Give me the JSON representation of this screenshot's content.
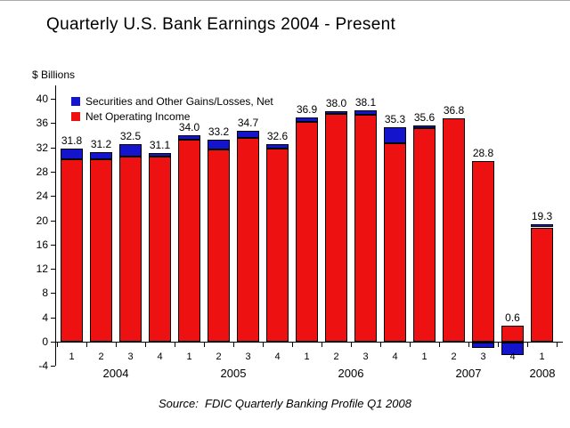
{
  "page": {
    "title": "Quarterly U.S. Bank Earnings 2004 - Present",
    "source_note": "Source:  FDIC Quarterly Banking Profile Q1 2008"
  },
  "chart_data": {
    "type": "bar",
    "stacked": true,
    "title": "Quarterly U.S. Bank Earnings 2004 - Present",
    "ylabel": "$ Billions",
    "ylim": [
      -4,
      40
    ],
    "ytick_step": 4,
    "grid": false,
    "legend_position": "top-left-inside",
    "colors": {
      "securities": "#1414cc",
      "operating": "#ee1111",
      "bar_border": "#000000",
      "axis": "#000000"
    },
    "categories": [
      {
        "q": "1",
        "year": "2004"
      },
      {
        "q": "2",
        "year": "2004"
      },
      {
        "q": "3",
        "year": "2004"
      },
      {
        "q": "4",
        "year": "2004"
      },
      {
        "q": "1",
        "year": "2005"
      },
      {
        "q": "2",
        "year": "2005"
      },
      {
        "q": "3",
        "year": "2005"
      },
      {
        "q": "4",
        "year": "2005"
      },
      {
        "q": "1",
        "year": "2006"
      },
      {
        "q": "2",
        "year": "2006"
      },
      {
        "q": "3",
        "year": "2006"
      },
      {
        "q": "4",
        "year": "2006"
      },
      {
        "q": "1",
        "year": "2007"
      },
      {
        "q": "2",
        "year": "2007"
      },
      {
        "q": "3",
        "year": "2007"
      },
      {
        "q": "4",
        "year": "2007"
      },
      {
        "q": "1",
        "year": "2008"
      }
    ],
    "series": [
      {
        "name": "Securities and Other Gains/Losses, Net",
        "color": "#1414cc",
        "values": [
          1.8,
          1.2,
          2.0,
          0.6,
          0.8,
          1.6,
          1.2,
          0.8,
          0.7,
          0.5,
          0.8,
          2.6,
          0.4,
          0.0,
          -0.9,
          -2.1,
          0.5
        ]
      },
      {
        "name": "Net Operating Income",
        "color": "#ee1111",
        "values": [
          30.0,
          30.0,
          30.5,
          30.5,
          33.2,
          31.6,
          33.5,
          31.8,
          36.2,
          37.5,
          37.3,
          32.7,
          35.2,
          36.8,
          29.7,
          2.7,
          18.8
        ]
      }
    ],
    "totals": [
      31.8,
      31.2,
      32.5,
      31.1,
      34.0,
      33.2,
      34.7,
      32.6,
      36.9,
      38.0,
      38.1,
      35.3,
      35.6,
      36.8,
      28.8,
      0.6,
      19.3
    ]
  }
}
